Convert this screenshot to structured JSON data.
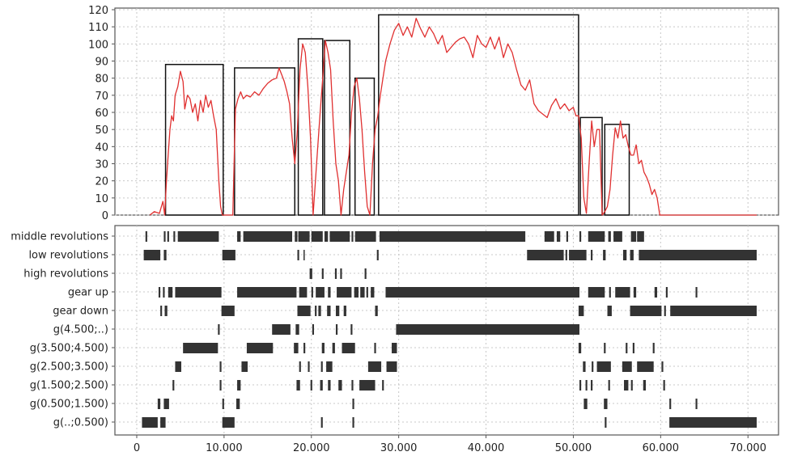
{
  "chart_data": [
    {
      "type": "line",
      "title": "",
      "xlabel": "",
      "ylabel": "",
      "xlim": [
        -2500,
        73500
      ],
      "ylim": [
        0,
        120
      ],
      "grid": true,
      "y_ticks": [
        "0",
        "10",
        "20",
        "30",
        "40",
        "50",
        "60",
        "70",
        "80",
        "90",
        "100",
        "110",
        "120"
      ],
      "series": [
        {
          "color": "#e03030",
          "x": [
            1500,
            2000,
            2600,
            3000,
            3200,
            3400,
            3600,
            3800,
            4000,
            4200,
            4400,
            4700,
            5000,
            5300,
            5500,
            5800,
            6100,
            6400,
            6700,
            7000,
            7300,
            7600,
            7900,
            8200,
            8500,
            8800,
            9100,
            9400,
            9600,
            9800,
            10000,
            11000,
            11300,
            11600,
            11900,
            12200,
            12600,
            13000,
            13500,
            14000,
            14500,
            15000,
            15500,
            16000,
            16300,
            16600,
            16900,
            17200,
            17500,
            17800,
            18100,
            18400,
            18700,
            19000,
            19300,
            19600,
            19900,
            20200,
            20600,
            21000,
            21300,
            21600,
            21900,
            22200,
            22500,
            22800,
            23100,
            23400,
            23700,
            24000,
            24300,
            24600,
            24900,
            25200,
            25500,
            25800,
            26100,
            26400,
            26700,
            27000,
            27300,
            27600,
            27900,
            28200,
            28500,
            29000,
            29500,
            30000,
            30500,
            31000,
            31500,
            32000,
            32500,
            33000,
            33500,
            34000,
            34500,
            35000,
            35500,
            36000,
            36500,
            37000,
            37500,
            38000,
            38500,
            39000,
            39500,
            40000,
            40500,
            41000,
            41500,
            42000,
            42500,
            43000,
            43500,
            44000,
            44500,
            45000,
            45500,
            46000,
            46500,
            47000,
            47500,
            48000,
            48500,
            49000,
            49500,
            50000,
            50300,
            50600,
            50900,
            51200,
            51500,
            51800,
            52100,
            52400,
            52700,
            53000,
            53300,
            53600,
            53900,
            54200,
            54500,
            54800,
            55100,
            55400,
            55700,
            56000,
            56300,
            56600,
            56900,
            57200,
            57500,
            57800,
            58100,
            58400,
            58700,
            59000,
            59300,
            59600,
            59900,
            60200,
            60500,
            60800,
            61100,
            61500,
            62500,
            65000,
            68000,
            70000,
            71000
          ],
          "y": [
            0,
            2,
            1,
            8,
            0,
            20,
            35,
            50,
            58,
            55,
            70,
            75,
            84,
            78,
            62,
            70,
            68,
            60,
            65,
            55,
            67,
            60,
            70,
            63,
            67,
            58,
            50,
            20,
            5,
            0,
            0,
            0,
            62,
            68,
            72,
            68,
            70,
            69,
            72,
            70,
            74,
            77,
            79,
            80,
            86,
            82,
            78,
            72,
            65,
            45,
            30,
            50,
            85,
            100,
            95,
            75,
            45,
            0,
            30,
            60,
            80,
            102,
            95,
            85,
            55,
            30,
            20,
            0,
            15,
            25,
            35,
            60,
            75,
            80,
            68,
            50,
            25,
            5,
            0,
            30,
            50,
            58,
            70,
            80,
            90,
            100,
            108,
            112,
            105,
            110,
            104,
            115,
            109,
            104,
            110,
            106,
            100,
            105,
            95,
            98,
            101,
            103,
            104,
            100,
            92,
            105,
            100,
            98,
            104,
            97,
            104,
            92,
            100,
            95,
            85,
            76,
            73,
            79,
            65,
            61,
            59,
            57,
            64,
            68,
            62,
            65,
            61,
            63,
            58,
            58,
            45,
            10,
            1,
            30,
            55,
            40,
            50,
            50,
            0,
            2,
            5,
            15,
            35,
            51,
            45,
            55,
            45,
            47,
            40,
            35,
            35,
            41,
            30,
            32,
            25,
            22,
            18,
            12,
            15,
            10,
            0,
            0,
            0,
            0,
            0,
            0,
            0,
            0,
            0,
            0,
            0
          ]
        }
      ],
      "segments": [
        [
          3300,
          9900,
          88
        ],
        [
          11200,
          18100,
          86
        ],
        [
          18500,
          21300,
          103
        ],
        [
          21500,
          24400,
          102
        ],
        [
          25000,
          27200,
          80
        ],
        [
          27700,
          50600,
          117
        ],
        [
          50800,
          53300,
          57
        ],
        [
          53600,
          56400,
          53
        ]
      ]
    },
    {
      "type": "heatmap",
      "xlim": [
        -2500,
        73500
      ],
      "grid": true,
      "x_ticks": [
        "0",
        "10.000",
        "20.000",
        "30.000",
        "40.000",
        "50.000",
        "60.000",
        "70.000"
      ],
      "x_tick_values": [
        0,
        10000,
        20000,
        30000,
        40000,
        50000,
        60000,
        70000
      ],
      "rows": [
        {
          "label": "middle revolutions",
          "intervals": [
            [
              1000,
              1200
            ],
            [
              3100,
              3300
            ],
            [
              3500,
              3700
            ],
            [
              4200,
              4400
            ],
            [
              4700,
              9400
            ],
            [
              11500,
              11900
            ],
            [
              12200,
              17800
            ],
            [
              18100,
              18400
            ],
            [
              18500,
              19800
            ],
            [
              20000,
              21300
            ],
            [
              21500,
              21900
            ],
            [
              22100,
              24400
            ],
            [
              24600,
              24800
            ],
            [
              25000,
              27400
            ],
            [
              27800,
              44500
            ],
            [
              46700,
              47800
            ],
            [
              48100,
              48500
            ],
            [
              49200,
              49400
            ],
            [
              50700,
              50900
            ],
            [
              51700,
              53600
            ],
            [
              54000,
              54300
            ],
            [
              54600,
              55600
            ],
            [
              56600,
              57200
            ],
            [
              57300,
              58100
            ]
          ]
        },
        {
          "label": "low revolutions",
          "intervals": [
            [
              800,
              2700
            ],
            [
              3100,
              3400
            ],
            [
              9800,
              11300
            ],
            [
              18400,
              18600
            ],
            [
              19100,
              19200
            ],
            [
              27500,
              27700
            ],
            [
              44700,
              48900
            ],
            [
              49100,
              49300
            ],
            [
              49500,
              51500
            ],
            [
              52000,
              52200
            ],
            [
              53400,
              53700
            ],
            [
              55700,
              56100
            ],
            [
              56500,
              56900
            ],
            [
              57500,
              71000
            ]
          ]
        },
        {
          "label": "high revolutions",
          "intervals": [
            [
              19800,
              20100
            ],
            [
              21200,
              21400
            ],
            [
              22700,
              22900
            ],
            [
              23300,
              23500
            ],
            [
              26100,
              26300
            ]
          ]
        },
        {
          "label": "gear up",
          "intervals": [
            [
              2500,
              2700
            ],
            [
              3000,
              3200
            ],
            [
              3600,
              4100
            ],
            [
              4400,
              9700
            ],
            [
              11500,
              18300
            ],
            [
              18600,
              19500
            ],
            [
              20000,
              20200
            ],
            [
              20500,
              21500
            ],
            [
              21900,
              22200
            ],
            [
              22900,
              24600
            ],
            [
              24900,
              25400
            ],
            [
              25600,
              26100
            ],
            [
              26300,
              26500
            ],
            [
              26800,
              27200
            ],
            [
              28500,
              50700
            ],
            [
              51700,
              53600
            ],
            [
              54100,
              54300
            ],
            [
              54800,
              56500
            ],
            [
              56900,
              57200
            ],
            [
              59300,
              59600
            ],
            [
              60600,
              60800
            ],
            [
              64000,
              64200
            ]
          ]
        },
        {
          "label": "gear down",
          "intervals": [
            [
              2700,
              2900
            ],
            [
              3200,
              3500
            ],
            [
              9700,
              11200
            ],
            [
              18400,
              19900
            ],
            [
              20400,
              20600
            ],
            [
              20800,
              21100
            ],
            [
              21800,
              22200
            ],
            [
              22800,
              23200
            ],
            [
              23700,
              24000
            ],
            [
              27300,
              27600
            ],
            [
              50600,
              51200
            ],
            [
              53900,
              54400
            ],
            [
              56500,
              60100
            ],
            [
              60400,
              60600
            ],
            [
              61100,
              71000
            ]
          ]
        },
        {
          "label": "g(4.500;..)",
          "intervals": [
            [
              9300,
              9500
            ],
            [
              15500,
              17600
            ],
            [
              18200,
              18600
            ],
            [
              20100,
              20300
            ],
            [
              22800,
              23000
            ],
            [
              24500,
              24700
            ],
            [
              29700,
              50700
            ]
          ]
        },
        {
          "label": "g(3.500;4.500)",
          "intervals": [
            [
              5300,
              9300
            ],
            [
              12600,
              15600
            ],
            [
              18000,
              18500
            ],
            [
              19100,
              19300
            ],
            [
              21200,
              21500
            ],
            [
              22400,
              22700
            ],
            [
              23500,
              25000
            ],
            [
              27200,
              27400
            ],
            [
              29200,
              29800
            ],
            [
              50600,
              50900
            ],
            [
              53500,
              53700
            ],
            [
              56000,
              56200
            ],
            [
              56800,
              57000
            ],
            [
              59100,
              59300
            ]
          ]
        },
        {
          "label": "g(2.500;3.500)",
          "intervals": [
            [
              4400,
              5100
            ],
            [
              9500,
              9700
            ],
            [
              12000,
              12700
            ],
            [
              18600,
              18800
            ],
            [
              19600,
              19800
            ],
            [
              21100,
              21300
            ],
            [
              21700,
              22400
            ],
            [
              26500,
              28000
            ],
            [
              28600,
              29800
            ],
            [
              51100,
              51400
            ],
            [
              52100,
              52300
            ],
            [
              52700,
              54300
            ],
            [
              55600,
              56700
            ],
            [
              57300,
              59200
            ],
            [
              60100,
              60300
            ]
          ]
        },
        {
          "label": "g(1.500;2.500)",
          "intervals": [
            [
              4100,
              4300
            ],
            [
              9500,
              9700
            ],
            [
              11500,
              11900
            ],
            [
              18300,
              18700
            ],
            [
              19900,
              20100
            ],
            [
              21000,
              21300
            ],
            [
              21900,
              22200
            ],
            [
              23100,
              23500
            ],
            [
              24600,
              24800
            ],
            [
              25500,
              27300
            ],
            [
              28100,
              28300
            ],
            [
              50700,
              50900
            ],
            [
              51400,
              51600
            ],
            [
              52000,
              52200
            ],
            [
              54000,
              54200
            ],
            [
              55800,
              56300
            ],
            [
              56600,
              56800
            ],
            [
              58000,
              58300
            ],
            [
              60300,
              60500
            ]
          ]
        },
        {
          "label": "g(0.500;1.500)",
          "intervals": [
            [
              2400,
              2700
            ],
            [
              3100,
              3700
            ],
            [
              9800,
              10000
            ],
            [
              11400,
              11800
            ],
            [
              24700,
              24900
            ],
            [
              51200,
              51600
            ],
            [
              53500,
              53900
            ],
            [
              61000,
              61200
            ],
            [
              64000,
              64200
            ]
          ]
        },
        {
          "label": "g(..;0.500)",
          "intervals": [
            [
              600,
              2400
            ],
            [
              2700,
              3300
            ],
            [
              9800,
              11200
            ],
            [
              21100,
              21300
            ],
            [
              24700,
              24900
            ],
            [
              53600,
              53800
            ],
            [
              61000,
              71000
            ]
          ]
        }
      ]
    }
  ]
}
